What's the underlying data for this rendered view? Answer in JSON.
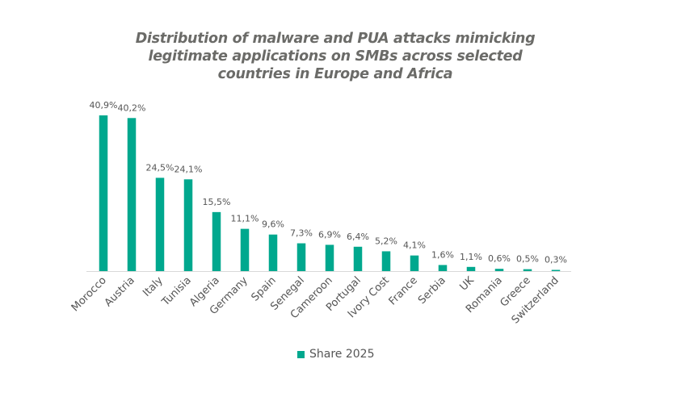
{
  "chart_data": {
    "type": "bar",
    "title": "Distribution of malware and PUA attacks mimicking legitimate applications on SMBs across selected countries in Europe and Africa",
    "xlabel": "",
    "ylabel": "",
    "ylim": [
      0,
      41
    ],
    "grid": false,
    "legend_position": "bottom",
    "categories": [
      "Morocco",
      "Austria",
      "Italy",
      "Tunisia",
      "Algeria",
      "Germany",
      "Spain",
      "Senegal",
      "Cameroon",
      "Portugal",
      "Ivory Cost",
      "France",
      "Serbia",
      "UK",
      "Romania",
      "Greece",
      "Switzerland"
    ],
    "series": [
      {
        "name": "Share 2025",
        "color": "#00a88e",
        "values": [
          40.9,
          40.2,
          24.5,
          24.1,
          15.5,
          11.1,
          9.6,
          7.3,
          6.9,
          6.4,
          5.2,
          4.1,
          1.6,
          1.1,
          0.6,
          0.5,
          0.3
        ],
        "labels": [
          "40,9%",
          "40,2%",
          "24,5%",
          "24,1%",
          "15,5%",
          "11,1%",
          "9,6%",
          "7,3%",
          "6,9%",
          "6,4%",
          "5,2%",
          "4,1%",
          "1,6%",
          "1,1%",
          "0,6%",
          "0,5%",
          "0,3%"
        ]
      }
    ]
  },
  "colors": {
    "bar": "#00a88e",
    "title": "#6b6b68",
    "label": "#555555",
    "axis": "#d9d9d9"
  }
}
